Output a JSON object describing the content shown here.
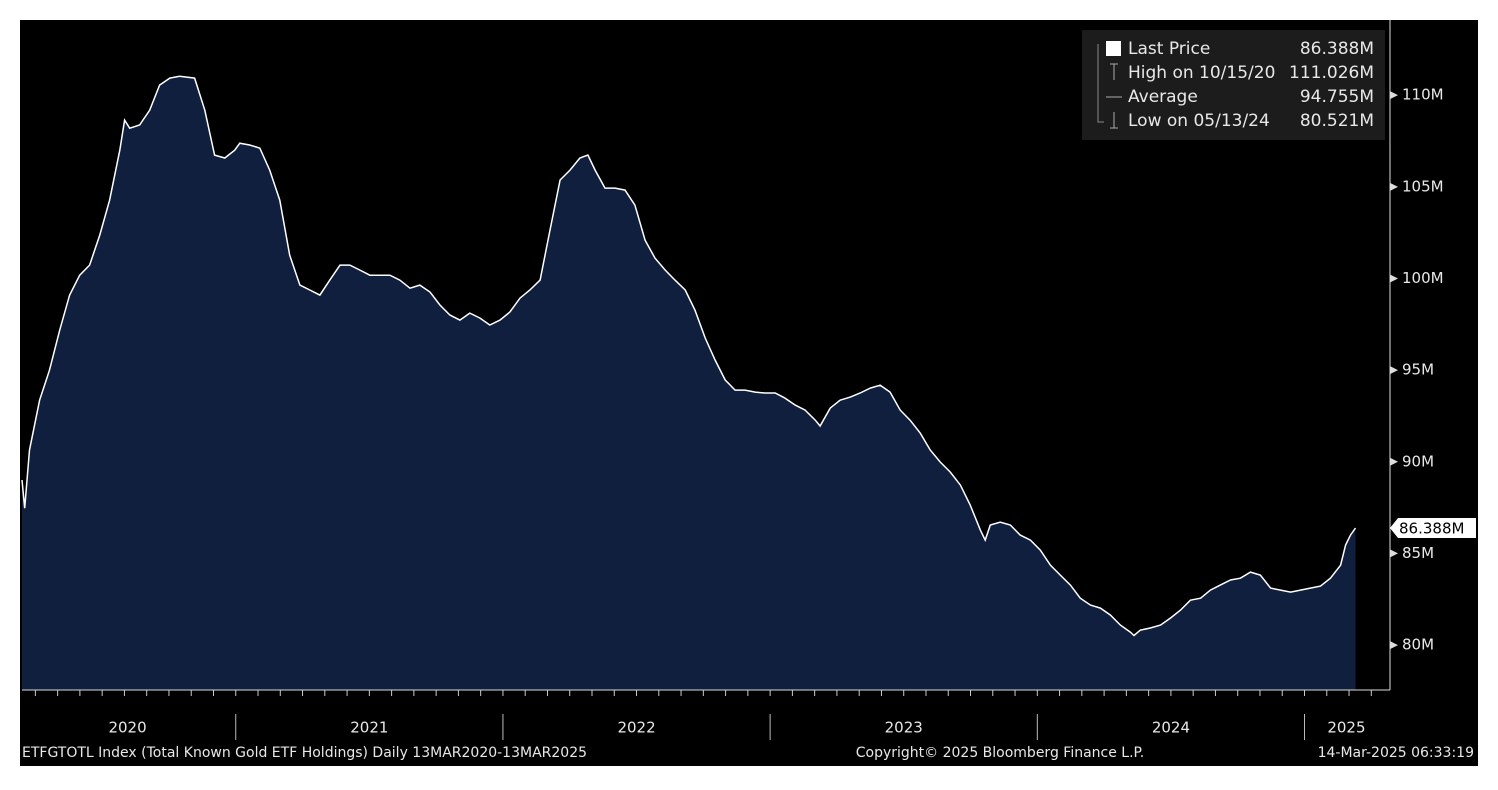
{
  "chart_data": {
    "type": "area",
    "line_color": "#ffffff",
    "fill_color": "#0f1f3d",
    "xlim": [
      2020.2,
      2025.32
    ],
    "ylim": [
      77.55,
      114.1
    ],
    "yticks": [
      {
        "value": 80,
        "label": "80M"
      },
      {
        "value": 85,
        "label": "85M"
      },
      {
        "value": 90,
        "label": "90M"
      },
      {
        "value": 95,
        "label": "95M"
      },
      {
        "value": 100,
        "label": "100M"
      },
      {
        "value": 105,
        "label": "105M"
      },
      {
        "value": 110,
        "label": "110M"
      }
    ],
    "xticks": [
      {
        "value": 2020.595,
        "label": "2020"
      },
      {
        "value": 2021.5,
        "label": "2021"
      },
      {
        "value": 2022.5,
        "label": "2022"
      },
      {
        "value": 2023.5,
        "label": "2023"
      },
      {
        "value": 2024.5,
        "label": "2024"
      },
      {
        "value": 2025.157,
        "label": "2025"
      }
    ],
    "legend": [
      {
        "label": "Last Price",
        "value": "86.388M"
      },
      {
        "label": "High on 10/15/20",
        "value": "111.026M"
      },
      {
        "label": "Average",
        "value": "94.755M"
      },
      {
        "label": "Low on 05/13/24",
        "value": "80.521M"
      }
    ],
    "footer": {
      "source": "ETFGTOTL Index (Total Known Gold ETF Holdings)  Daily 13MAR2020-13MAR2025",
      "copyright": "Copyright© 2025 Bloomberg Finance L.P.",
      "timestamp": "14-Mar-2025 06:33:19"
    },
    "x": [
      2020.2,
      2020.21,
      2020.228,
      2020.266,
      2020.303,
      2020.341,
      2020.378,
      2020.416,
      2020.453,
      2020.491,
      2020.528,
      2020.566,
      2020.584,
      2020.603,
      2020.64,
      2020.678,
      2020.715,
      2020.753,
      2020.79,
      2020.846,
      2020.884,
      2020.921,
      2020.959,
      2020.996,
      2021.015,
      2021.052,
      2021.09,
      2021.127,
      2021.165,
      2021.202,
      2021.24,
      2021.277,
      2021.315,
      2021.352,
      2021.39,
      2021.427,
      2021.464,
      2021.502,
      2021.539,
      2021.577,
      2021.614,
      2021.652,
      2021.689,
      2021.727,
      2021.764,
      2021.802,
      2021.839,
      2021.876,
      2021.914,
      2021.951,
      2021.989,
      2022.026,
      2022.064,
      2022.101,
      2022.139,
      2022.176,
      2022.214,
      2022.251,
      2022.288,
      2022.318,
      2022.345,
      2022.382,
      2022.42,
      2022.457,
      2022.494,
      2022.532,
      2022.569,
      2022.607,
      2022.644,
      2022.682,
      2022.719,
      2022.757,
      2022.794,
      2022.832,
      2022.869,
      2022.906,
      2022.944,
      2022.981,
      2023.019,
      2023.056,
      2023.094,
      2023.131,
      2023.169,
      2023.187,
      2023.225,
      2023.262,
      2023.3,
      2023.337,
      2023.375,
      2023.412,
      2023.449,
      2023.487,
      2023.524,
      2023.562,
      2023.599,
      2023.637,
      2023.674,
      2023.712,
      2023.749,
      2023.787,
      2023.805,
      2023.824,
      2023.861,
      2023.899,
      2023.936,
      2023.974,
      2024.011,
      2024.049,
      2024.086,
      2024.124,
      2024.161,
      2024.199,
      2024.236,
      2024.273,
      2024.311,
      2024.348,
      2024.362,
      2024.386,
      2024.423,
      2024.461,
      2024.498,
      2024.536,
      2024.573,
      2024.611,
      2024.648,
      2024.685,
      2024.723,
      2024.76,
      2024.798,
      2024.835,
      2024.873,
      2024.91,
      2024.948,
      2024.985,
      2025.022,
      2025.06,
      2025.097,
      2025.135,
      2025.154,
      2025.172,
      2025.191
    ],
    "values": [
      89.0,
      87.47,
      90.64,
      93.36,
      95.0,
      97.18,
      99.09,
      100.18,
      100.73,
      102.37,
      104.27,
      107.0,
      108.64,
      108.2,
      108.37,
      109.18,
      110.55,
      110.93,
      111.026,
      110.93,
      109.18,
      106.73,
      106.57,
      107.0,
      107.38,
      107.28,
      107.11,
      105.91,
      104.27,
      101.27,
      99.64,
      99.37,
      99.09,
      99.91,
      100.73,
      100.73,
      100.46,
      100.18,
      100.18,
      100.18,
      99.91,
      99.47,
      99.64,
      99.26,
      98.55,
      98.0,
      97.73,
      98.11,
      97.84,
      97.46,
      97.73,
      98.17,
      98.93,
      99.37,
      99.91,
      102.64,
      105.37,
      105.91,
      106.57,
      106.73,
      105.91,
      104.93,
      104.93,
      104.82,
      104.0,
      102.09,
      101.11,
      100.46,
      99.91,
      99.37,
      98.27,
      96.75,
      95.55,
      94.46,
      93.91,
      93.91,
      93.8,
      93.75,
      93.75,
      93.47,
      93.09,
      92.82,
      92.27,
      91.95,
      92.93,
      93.36,
      93.53,
      93.75,
      94.02,
      94.18,
      93.8,
      92.82,
      92.27,
      91.56,
      90.64,
      89.98,
      89.44,
      88.73,
      87.64,
      86.27,
      85.73,
      86.55,
      86.71,
      86.55,
      86.0,
      85.73,
      85.18,
      84.36,
      83.82,
      83.27,
      82.56,
      82.18,
      82.02,
      81.64,
      81.09,
      80.71,
      80.521,
      80.82,
      80.93,
      81.09,
      81.47,
      81.91,
      82.45,
      82.56,
      83.0,
      83.27,
      83.55,
      83.65,
      83.98,
      83.82,
      83.11,
      83.0,
      82.89,
      83.0,
      83.11,
      83.22,
      83.65,
      84.36,
      85.46,
      86.0,
      86.388
    ]
  }
}
